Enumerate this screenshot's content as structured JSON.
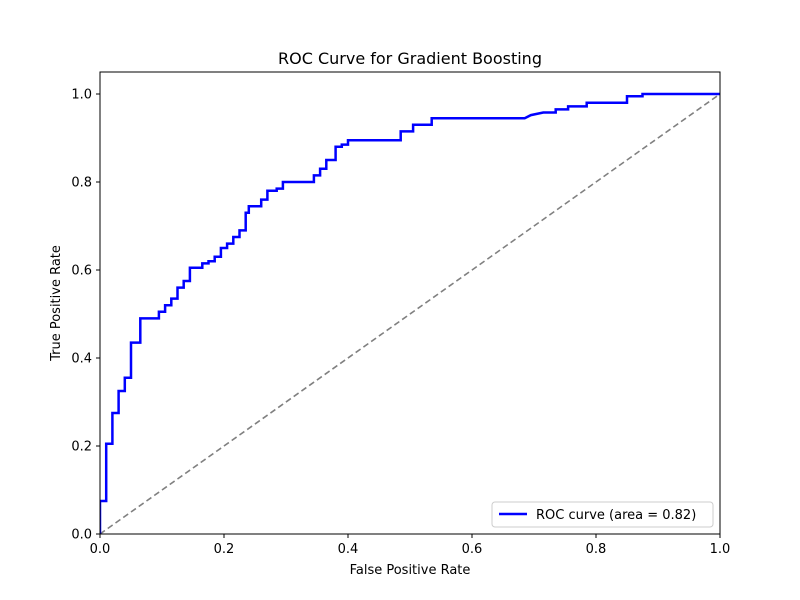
{
  "chart_data": {
    "type": "line",
    "title": "ROC Curve for Gradient Boosting",
    "xlabel": "False Positive Rate",
    "ylabel": "True Positive Rate",
    "xlim": [
      0.0,
      1.0
    ],
    "ylim": [
      0.0,
      1.05
    ],
    "xticks": [
      0.0,
      0.2,
      0.4,
      0.6,
      0.8,
      1.0
    ],
    "yticks": [
      0.0,
      0.2,
      0.4,
      0.6,
      0.8,
      1.0
    ],
    "xtick_labels": [
      "0.0",
      "0.2",
      "0.4",
      "0.6",
      "0.8",
      "1.0"
    ],
    "ytick_labels": [
      "0.0",
      "0.2",
      "0.4",
      "0.6",
      "0.8",
      "1.0"
    ],
    "grid": false,
    "legend_position": "lower-right",
    "series": [
      {
        "name": "ROC curve (area = 0.82)",
        "color": "#0000ff",
        "style": "solid",
        "x": [
          0.0,
          0.0,
          0.01,
          0.01,
          0.02,
          0.02,
          0.03,
          0.03,
          0.04,
          0.04,
          0.05,
          0.05,
          0.065,
          0.065,
          0.095,
          0.095,
          0.105,
          0.105,
          0.115,
          0.115,
          0.125,
          0.125,
          0.135,
          0.135,
          0.145,
          0.145,
          0.165,
          0.165,
          0.175,
          0.175,
          0.185,
          0.185,
          0.195,
          0.195,
          0.205,
          0.205,
          0.215,
          0.215,
          0.225,
          0.225,
          0.235,
          0.235,
          0.24,
          0.24,
          0.26,
          0.26,
          0.27,
          0.27,
          0.285,
          0.285,
          0.295,
          0.295,
          0.345,
          0.345,
          0.355,
          0.355,
          0.365,
          0.365,
          0.38,
          0.38,
          0.39,
          0.39,
          0.4,
          0.4,
          0.485,
          0.485,
          0.505,
          0.505,
          0.535,
          0.535,
          0.685,
          0.695,
          0.715,
          0.735,
          0.735,
          0.755,
          0.755,
          0.785,
          0.785,
          0.85,
          0.85,
          0.875,
          0.875,
          1.0
        ],
        "y": [
          0.0,
          0.075,
          0.075,
          0.205,
          0.205,
          0.275,
          0.275,
          0.325,
          0.325,
          0.355,
          0.355,
          0.435,
          0.435,
          0.49,
          0.49,
          0.505,
          0.505,
          0.52,
          0.52,
          0.535,
          0.535,
          0.56,
          0.56,
          0.575,
          0.575,
          0.605,
          0.605,
          0.615,
          0.615,
          0.62,
          0.62,
          0.63,
          0.63,
          0.65,
          0.65,
          0.66,
          0.66,
          0.675,
          0.675,
          0.69,
          0.69,
          0.73,
          0.73,
          0.745,
          0.745,
          0.76,
          0.76,
          0.78,
          0.78,
          0.785,
          0.785,
          0.8,
          0.8,
          0.815,
          0.815,
          0.83,
          0.83,
          0.85,
          0.85,
          0.88,
          0.88,
          0.885,
          0.885,
          0.895,
          0.895,
          0.915,
          0.915,
          0.93,
          0.93,
          0.945,
          0.945,
          0.952,
          0.958,
          0.958,
          0.965,
          0.965,
          0.972,
          0.972,
          0.98,
          0.98,
          0.995,
          0.995,
          1.0,
          1.0
        ]
      },
      {
        "name": "",
        "color": "#808080",
        "style": "dashed",
        "x": [
          0.0,
          1.0
        ],
        "y": [
          0.0,
          1.0
        ]
      }
    ]
  }
}
